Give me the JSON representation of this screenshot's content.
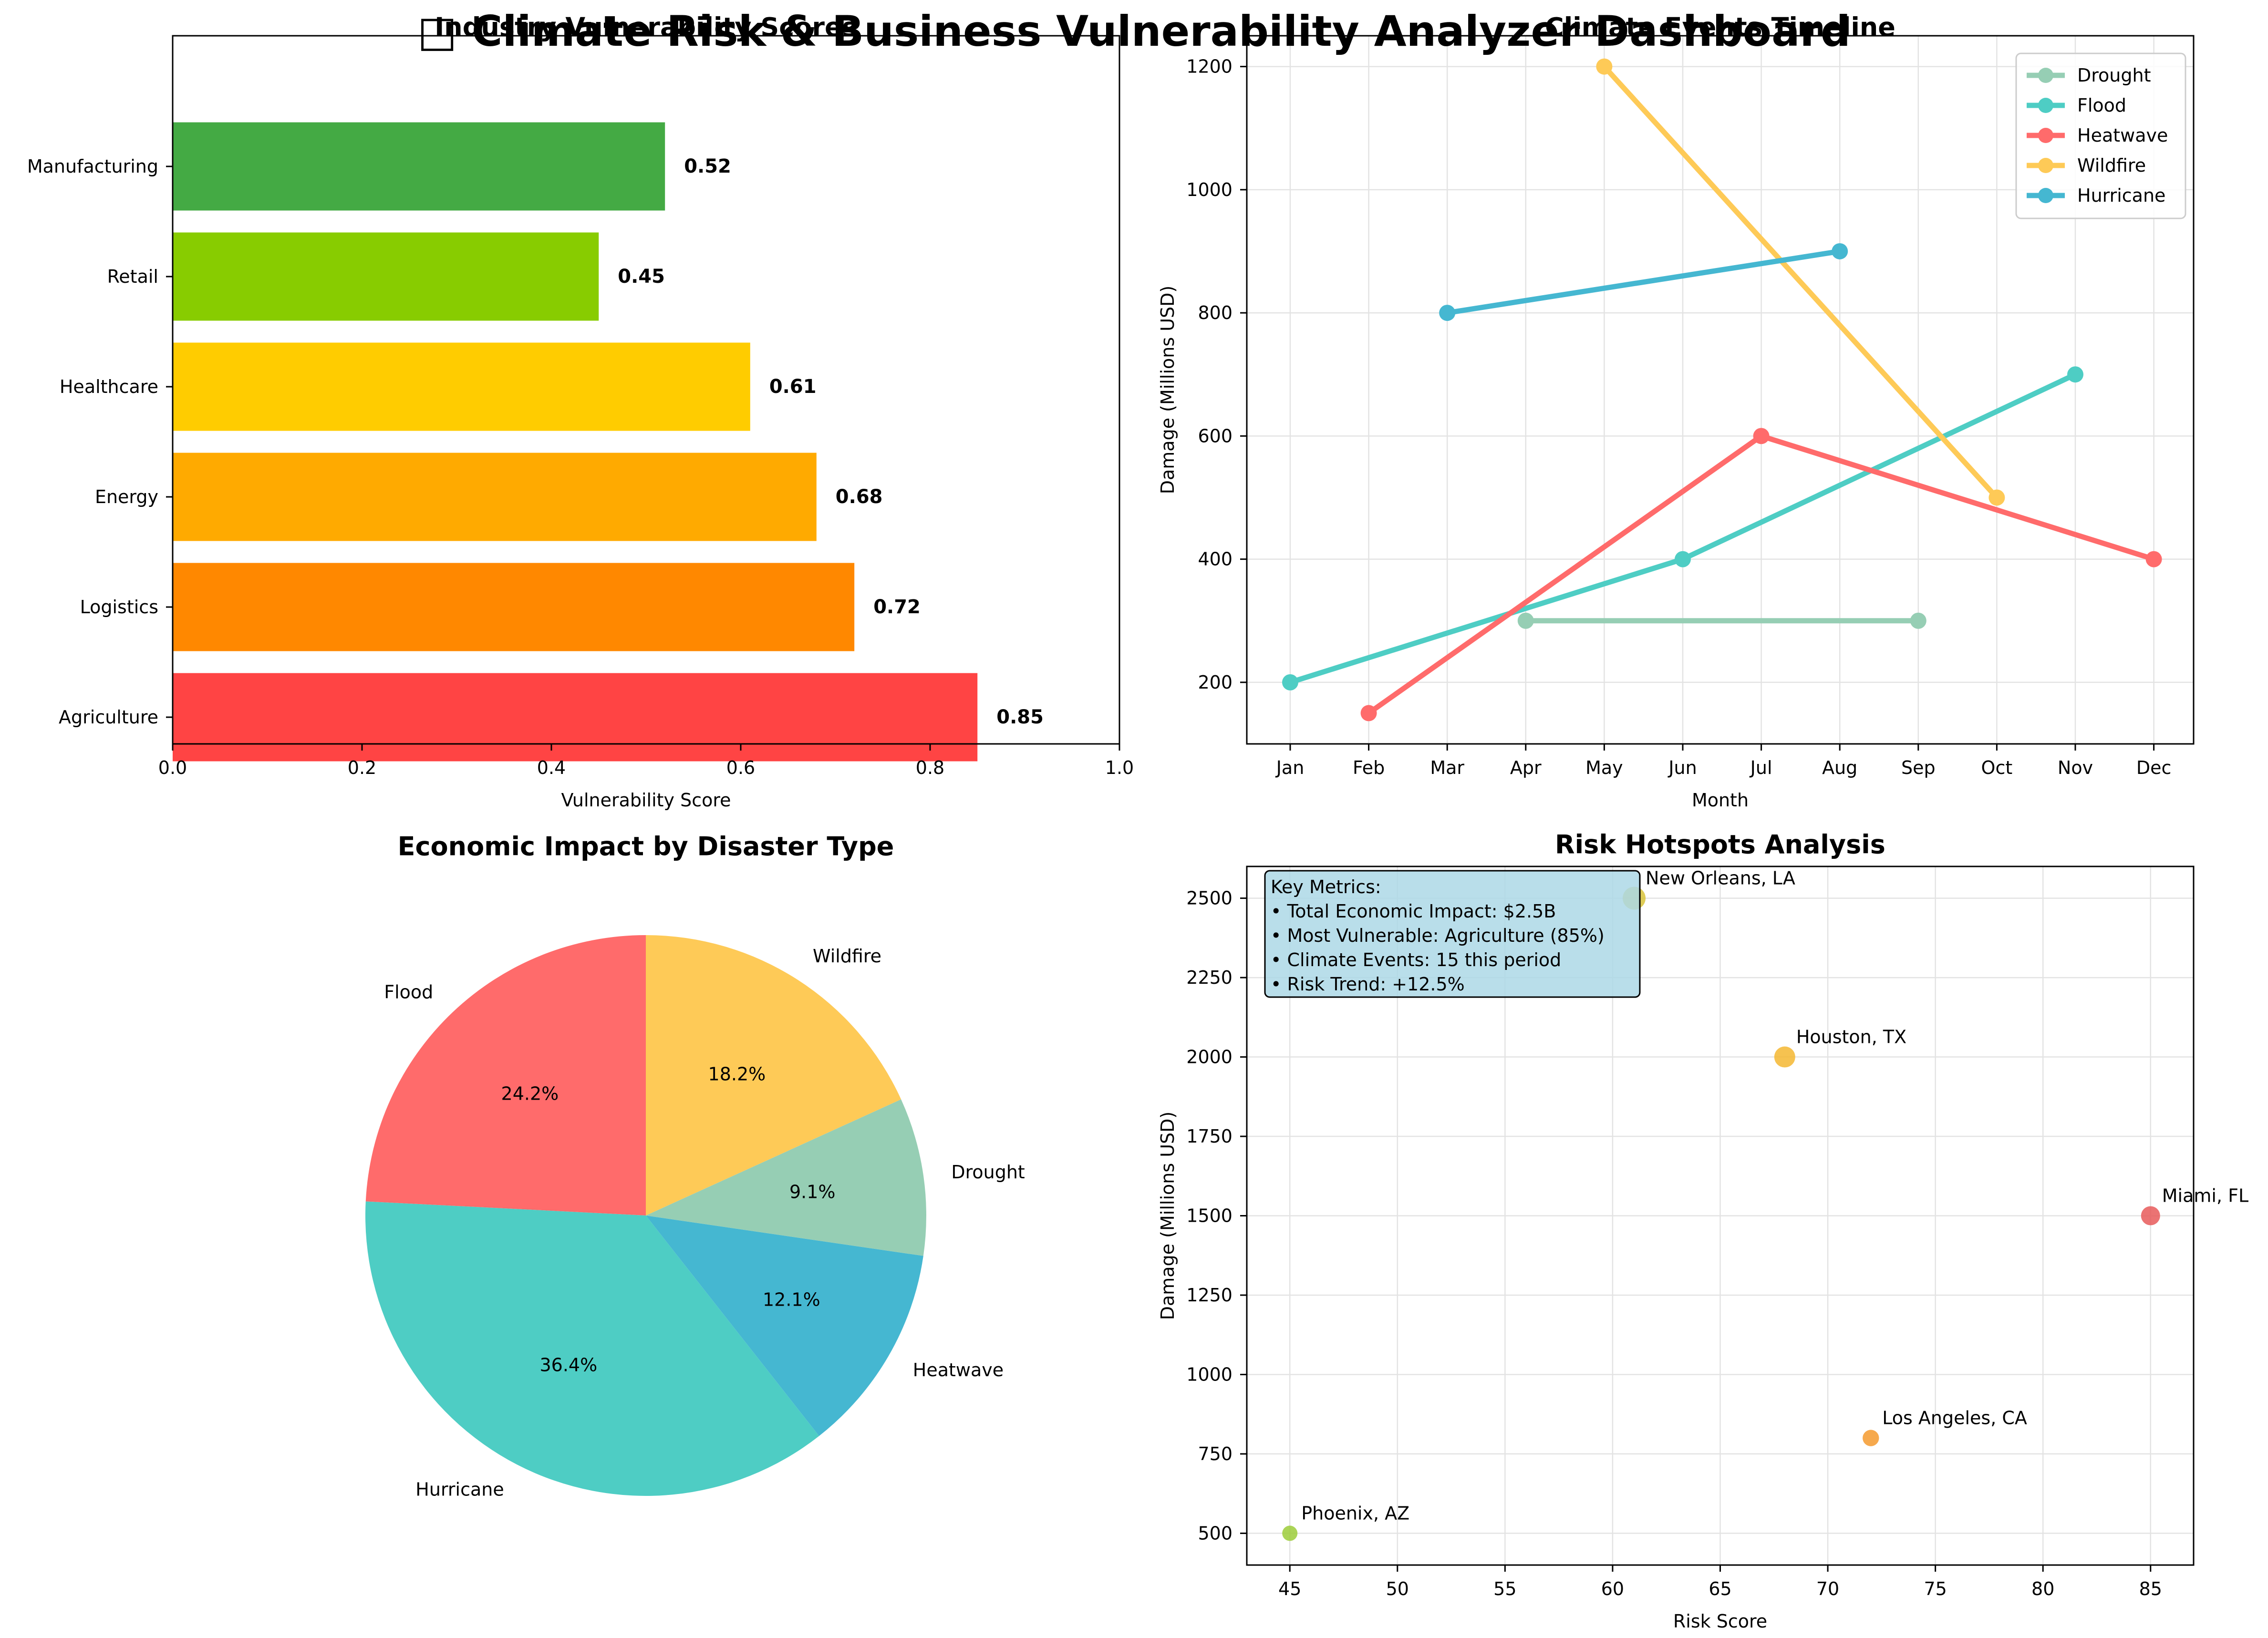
{
  "page": {
    "title": "Climate Risk & Business Vulnerability Analyzer Dashboard",
    "title_icon": "□"
  },
  "chart_data": [
    {
      "type": "bar",
      "orientation": "horizontal",
      "title": "Industry Vulnerability Scores",
      "xlabel": "Vulnerability Score",
      "ylabel": "",
      "categories": [
        "Agriculture",
        "Logistics",
        "Energy",
        "Healthcare",
        "Retail",
        "Manufacturing"
      ],
      "values": [
        0.85,
        0.72,
        0.68,
        0.61,
        0.45,
        0.52
      ],
      "value_labels": [
        "0.85",
        "0.72",
        "0.68",
        "0.61",
        "0.45",
        "0.52"
      ],
      "colors": [
        "#ff4444",
        "#ff8800",
        "#ffaa00",
        "#ffcc00",
        "#88cc00",
        "#44aa44"
      ],
      "xlim": [
        0,
        1.0
      ],
      "xticks": [
        "0.0",
        "0.2",
        "0.4",
        "0.6",
        "0.8",
        "1.0"
      ],
      "grid": false
    },
    {
      "type": "line",
      "title": "Climate Events Timeline",
      "xlabel": "Month",
      "ylabel": "Damage (Millions USD)",
      "categories": [
        "Jan",
        "Feb",
        "Mar",
        "Apr",
        "May",
        "Jun",
        "Jul",
        "Aug",
        "Sep",
        "Oct",
        "Nov",
        "Dec"
      ],
      "series": [
        {
          "name": "Drought",
          "color": "#96ceb4",
          "points": [
            {
              "x": "Apr",
              "y": 300
            },
            {
              "x": "Sep",
              "y": 300
            }
          ]
        },
        {
          "name": "Flood",
          "color": "#4ecdc4",
          "points": [
            {
              "x": "Jan",
              "y": 200
            },
            {
              "x": "Jun",
              "y": 400
            },
            {
              "x": "Nov",
              "y": 700
            }
          ]
        },
        {
          "name": "Heatwave",
          "color": "#ff6b6b",
          "points": [
            {
              "x": "Feb",
              "y": 150
            },
            {
              "x": "Jul",
              "y": 600
            },
            {
              "x": "Dec",
              "y": 400
            }
          ]
        },
        {
          "name": "Wildfire",
          "color": "#feca57",
          "points": [
            {
              "x": "May",
              "y": 1200
            },
            {
              "x": "Oct",
              "y": 500
            }
          ]
        },
        {
          "name": "Hurricane",
          "color": "#45b7d1",
          "points": [
            {
              "x": "Mar",
              "y": 800
            },
            {
              "x": "Aug",
              "y": 900
            }
          ]
        }
      ],
      "ylim": [
        100,
        1250
      ],
      "yticks": [
        "200",
        "400",
        "600",
        "800",
        "1000",
        "1200"
      ],
      "grid": true,
      "legend": "top-right"
    },
    {
      "type": "pie",
      "title": "Economic Impact by Disaster Type",
      "slices": [
        {
          "label": "Flood",
          "percent": 24.2,
          "pct_label": "24.2%",
          "color": "#ff6b6b"
        },
        {
          "label": "Hurricane",
          "percent": 36.4,
          "pct_label": "36.4%",
          "color": "#4ecdc4"
        },
        {
          "label": "Heatwave",
          "percent": 12.1,
          "pct_label": "12.1%",
          "color": "#45b7d1"
        },
        {
          "label": "Drought",
          "percent": 9.1,
          "pct_label": "9.1%",
          "color": "#96ceb4"
        },
        {
          "label": "Wildfire",
          "percent": 18.2,
          "pct_label": "18.2%",
          "color": "#feca57"
        }
      ],
      "start_angle": 90
    },
    {
      "type": "scatter",
      "title": "Risk Hotspots Analysis",
      "xlabel": "Risk Score",
      "ylabel": "Damage (Millions USD)",
      "points": [
        {
          "label": "Miami, FL",
          "x": 85,
          "y": 1500,
          "color": "#e85a5a"
        },
        {
          "label": "Houston, TX",
          "x": 68,
          "y": 2000,
          "color": "#f5b731"
        },
        {
          "label": "Los Angeles, CA",
          "x": 72,
          "y": 800,
          "color": "#f59a2e"
        },
        {
          "label": "New Orleans, LA",
          "x": 61,
          "y": 2500,
          "color": "#d8c33a"
        },
        {
          "label": "Phoenix, AZ",
          "x": 45,
          "y": 500,
          "color": "#9ccc3a"
        }
      ],
      "xlim": [
        43,
        87
      ],
      "ylim": [
        400,
        2600
      ],
      "xticks": [
        "45",
        "50",
        "55",
        "60",
        "65",
        "70",
        "75",
        "80",
        "85"
      ],
      "yticks": [
        "500",
        "750",
        "1000",
        "1250",
        "1500",
        "1750",
        "2000",
        "2250",
        "2500"
      ],
      "grid": true,
      "annotation": {
        "lines": [
          "Key Metrics:",
          "• Total Economic Impact: $2.5B",
          "• Most Vulnerable: Agriculture (85%)",
          "• Climate Events: 15 this period",
          "• Risk Trend: +12.5%"
        ],
        "background": "#add8e6"
      }
    }
  ]
}
